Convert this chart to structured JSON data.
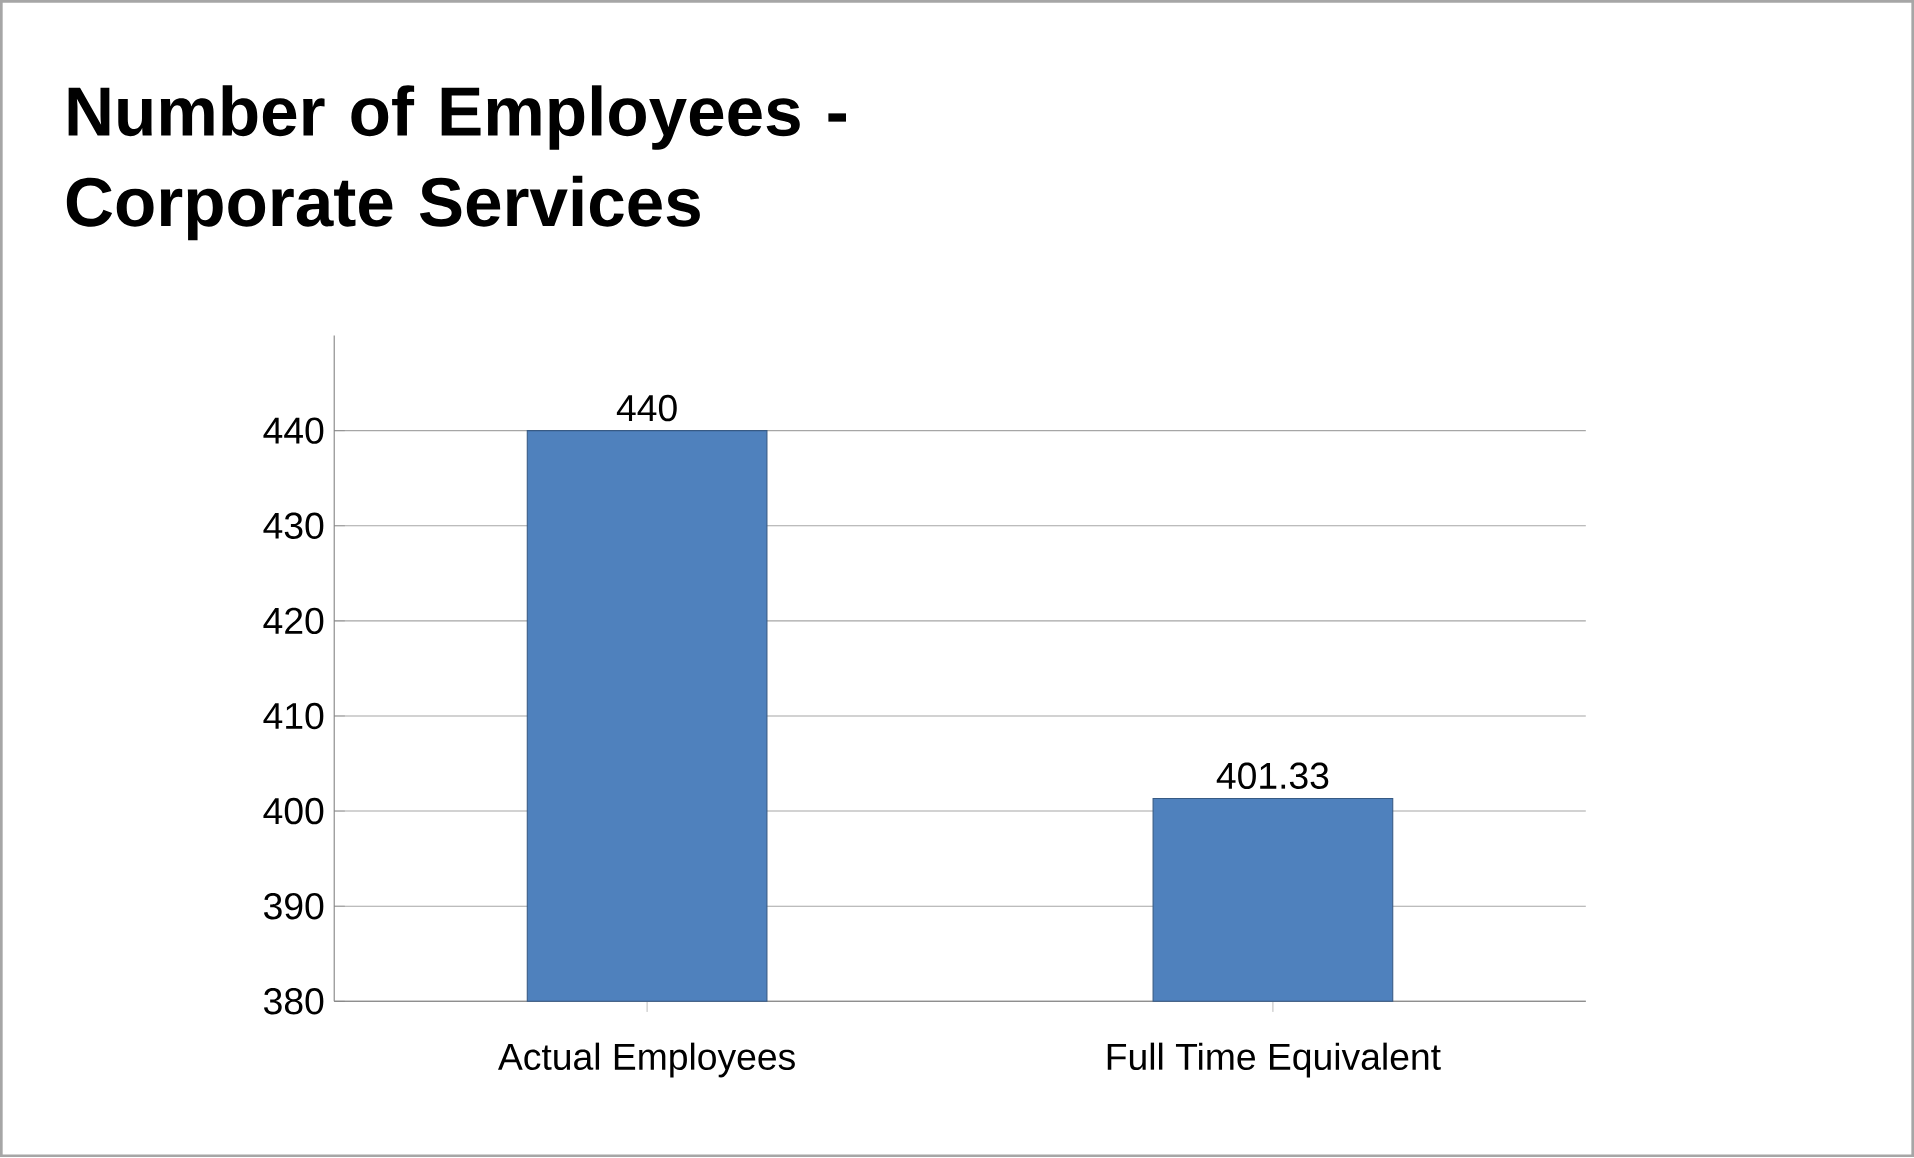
{
  "chart_data": {
    "type": "bar",
    "title": "Number of Employees - Corporate Services",
    "categories": [
      "Actual Employees",
      "Full Time Equivalent"
    ],
    "values": [
      440,
      401.33
    ],
    "color": "#4f81bd",
    "ylim": [
      380,
      450
    ],
    "yticks": [
      380,
      390,
      400,
      410,
      420,
      430,
      440
    ],
    "grid": "y",
    "data_labels": true
  }
}
